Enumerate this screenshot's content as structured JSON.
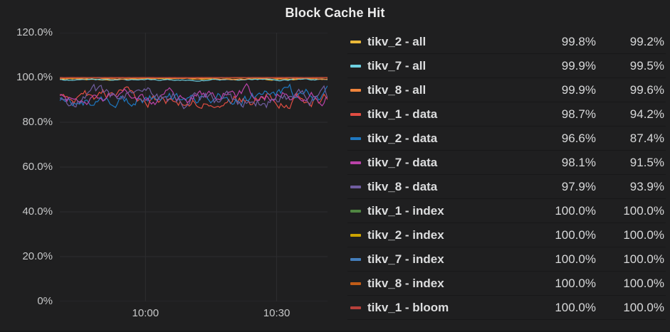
{
  "panel": {
    "title": "Block Cache Hit"
  },
  "colors": {
    "panel_bg": "#1f1f20",
    "grid": "#2d2d30",
    "axis_text": "#c7c8c9",
    "legend_text": "#d8d9da"
  },
  "chart_data": {
    "type": "line",
    "title": "Block Cache Hit",
    "xlabel": "",
    "ylabel": "",
    "ylim": [
      0,
      120
    ],
    "grid": true,
    "legend_position": "right",
    "y_ticks": [
      {
        "value": 120,
        "label": "120.0%"
      },
      {
        "value": 100,
        "label": "100.0%"
      },
      {
        "value": 80,
        "label": "80.0%"
      },
      {
        "value": 60,
        "label": "60.0%"
      },
      {
        "value": 40,
        "label": "40.0%"
      },
      {
        "value": 20,
        "label": "20.0%"
      },
      {
        "value": 0,
        "label": "0%"
      }
    ],
    "x_ticks": [
      {
        "pos": 0.32,
        "label": "10:00"
      },
      {
        "pos": 0.81,
        "label": "10:30"
      }
    ],
    "series": [
      {
        "name": "tikv_2 - all",
        "color": "#EAB839",
        "values": [
          "99.8%",
          "99.2%"
        ],
        "plot": {
          "base": 99.3,
          "noise": 0.3
        }
      },
      {
        "name": "tikv_7 - all",
        "color": "#6ED0E0",
        "values": [
          "99.9%",
          "99.5%"
        ],
        "plot": {
          "base": 99.0,
          "noise": 0.35
        }
      },
      {
        "name": "tikv_8 - all",
        "color": "#EF843C",
        "values": [
          "99.9%",
          "99.6%"
        ],
        "plot": {
          "base": 99.5,
          "noise": 0.25
        }
      },
      {
        "name": "tikv_1 - data",
        "color": "#E24D42",
        "values": [
          "98.7%",
          "94.2%"
        ],
        "plot": {
          "base": 91.0,
          "noise": 3.0
        }
      },
      {
        "name": "tikv_2 - data",
        "color": "#1F78C1",
        "values": [
          "96.6%",
          "87.4%"
        ],
        "plot": {
          "base": 91.5,
          "noise": 3.3
        }
      },
      {
        "name": "tikv_7 - data",
        "color": "#BA43A9",
        "values": [
          "98.1%",
          "91.5%"
        ],
        "plot": {
          "base": 92.0,
          "noise": 3.0
        }
      },
      {
        "name": "tikv_8 - data",
        "color": "#705DA0",
        "values": [
          "97.9%",
          "93.9%"
        ],
        "plot": {
          "base": 91.0,
          "noise": 3.4
        }
      },
      {
        "name": "tikv_1 - index",
        "color": "#508642",
        "values": [
          "100.0%",
          "100.0%"
        ],
        "plot": {
          "base": 100.0,
          "noise": 0.05
        }
      },
      {
        "name": "tikv_2 - index",
        "color": "#CCA300",
        "values": [
          "100.0%",
          "100.0%"
        ],
        "plot": {
          "base": 99.9,
          "noise": 0.05
        }
      },
      {
        "name": "tikv_7 - index",
        "color": "#447EBC",
        "values": [
          "100.0%",
          "100.0%"
        ],
        "plot": {
          "base": 99.95,
          "noise": 0.05
        }
      },
      {
        "name": "tikv_8 - index",
        "color": "#C15C17",
        "values": [
          "100.0%",
          "100.0%"
        ],
        "plot": {
          "base": 99.85,
          "noise": 0.05
        }
      },
      {
        "name": "tikv_1 - bloom",
        "color": "#B7403B",
        "values": [
          "100.0%",
          "100.0%"
        ],
        "plot": {
          "base": 100.0,
          "noise": 0.03
        }
      }
    ]
  }
}
